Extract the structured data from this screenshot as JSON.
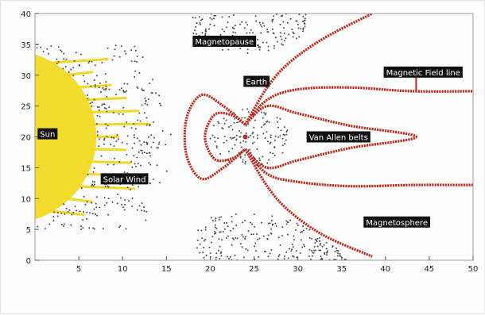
{
  "chart_data": {
    "type": "scatter",
    "title": "",
    "xlabel": "",
    "ylabel": "",
    "xlim": [
      0,
      50
    ],
    "ylim": [
      0,
      40
    ],
    "x_ticks": [
      5,
      10,
      15,
      20,
      25,
      30,
      35,
      40,
      45,
      50
    ],
    "y_ticks": [
      0,
      5,
      10,
      15,
      20,
      25,
      30,
      35,
      40
    ],
    "grid": false,
    "colors": {
      "sun": "#f2dc2e",
      "solar_wind": "#f5d620",
      "particles": "#4a4a4a",
      "field_lines": "#c0281c",
      "label_bg": "#111111",
      "label_text": "#ffffff"
    },
    "annotations": [
      {
        "id": "sun",
        "text": "Sun",
        "x": 0.3,
        "y": 20.5
      },
      {
        "id": "solar-wind",
        "text": "Solar Wind",
        "x": 7.5,
        "y": 13.2
      },
      {
        "id": "magnetopause",
        "text": "Magnetopause",
        "x": 18.0,
        "y": 35.5
      },
      {
        "id": "earth",
        "text": "Earth",
        "x": 23.8,
        "y": 29.0
      },
      {
        "id": "van-allen-belts",
        "text": "Van Allen belts",
        "x": 31.0,
        "y": 20.0
      },
      {
        "id": "magnetic-field-line",
        "text": "Magnetic Field line",
        "x": 39.8,
        "y": 30.5
      },
      {
        "id": "magnetosphere",
        "text": "Magnetosphere",
        "x": 37.5,
        "y": 6.2
      }
    ],
    "features": {
      "sun": {
        "center": [
          -3,
          20
        ],
        "radius_x": 10,
        "radius_y": 14
      },
      "earth": [
        24,
        20
      ],
      "field_lines": [
        {
          "name": "inner-loop",
          "points": [
            [
              24,
              22
            ],
            [
              21.5,
              25
            ],
            [
              19,
              26.8
            ],
            [
              17.3,
              23
            ],
            [
              17.3,
              17
            ],
            [
              19,
              13.2
            ],
            [
              21.5,
              15
            ],
            [
              24,
              18
            ]
          ]
        },
        {
          "name": "middle-loop",
          "points": [
            [
              24,
              22
            ],
            [
              22.5,
              23.5
            ],
            [
              20.5,
              23.6
            ],
            [
              19.4,
              20
            ],
            [
              20.5,
              16.4
            ],
            [
              22.5,
              16.5
            ],
            [
              24,
              18
            ]
          ]
        },
        {
          "name": "van-allen-lobe",
          "points": [
            [
              24,
              22
            ],
            [
              26.5,
              25
            ],
            [
              30,
              23.8
            ],
            [
              36,
              21.8
            ],
            [
              43.5,
              20
            ],
            [
              36,
              18.2
            ],
            [
              30,
              16.2
            ],
            [
              26.5,
              15
            ],
            [
              24,
              18
            ]
          ]
        },
        {
          "name": "upper-open-line",
          "points": [
            [
              24,
              22
            ],
            [
              26.5,
              26
            ],
            [
              30,
              27.7
            ],
            [
              36,
              28
            ],
            [
              43,
              27.4
            ],
            [
              50,
              27.4
            ]
          ]
        },
        {
          "name": "lower-open-line",
          "points": [
            [
              24,
              18
            ],
            [
              26.5,
              14
            ],
            [
              30,
              12.7
            ],
            [
              36,
              12
            ],
            [
              43,
              12.2
            ],
            [
              50,
              12.2
            ]
          ]
        },
        {
          "name": "upper-tail",
          "points": [
            [
              24,
              22
            ],
            [
              26.5,
              28
            ],
            [
              29,
              32
            ],
            [
              33,
              36
            ],
            [
              38.5,
              40
            ]
          ]
        },
        {
          "name": "lower-tail",
          "points": [
            [
              24,
              18
            ],
            [
              26.5,
              12
            ],
            [
              29,
              8
            ],
            [
              33,
              4
            ],
            [
              38.5,
              0.6
            ]
          ]
        }
      ]
    }
  }
}
